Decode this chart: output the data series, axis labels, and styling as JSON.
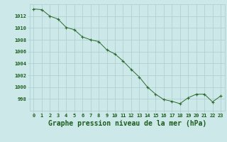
{
  "x": [
    0,
    1,
    2,
    3,
    4,
    5,
    6,
    7,
    8,
    9,
    10,
    11,
    12,
    13,
    14,
    15,
    16,
    17,
    18,
    19,
    20,
    21,
    22,
    23
  ],
  "y": [
    1013.2,
    1013.1,
    1012.0,
    1011.5,
    1010.1,
    1009.7,
    1008.5,
    1008.0,
    1007.7,
    1006.3,
    1005.6,
    1004.4,
    1003.0,
    1001.7,
    1000.0,
    998.8,
    997.9,
    997.6,
    997.2,
    998.2,
    998.8,
    998.8,
    997.5,
    998.5
  ],
  "xlabel": "Graphe pression niveau de la mer (hPa)",
  "ylim": [
    996,
    1014
  ],
  "xlim_left": -0.5,
  "xlim_right": 23.5,
  "yticks": [
    998,
    1000,
    1002,
    1004,
    1006,
    1008,
    1010,
    1012
  ],
  "xtick_labels": [
    "0",
    "1",
    "2",
    "3",
    "4",
    "5",
    "6",
    "7",
    "8",
    "9",
    "10",
    "11",
    "12",
    "13",
    "14",
    "15",
    "16",
    "17",
    "18",
    "19",
    "20",
    "21",
    "22",
    "23"
  ],
  "line_color": "#2d6a2d",
  "marker_color": "#2d6a2d",
  "bg_color": "#cce8e8",
  "grid_color": "#aacece",
  "label_color": "#1a5c1a",
  "tick_fontsize": 5,
  "xlabel_fontsize": 7
}
